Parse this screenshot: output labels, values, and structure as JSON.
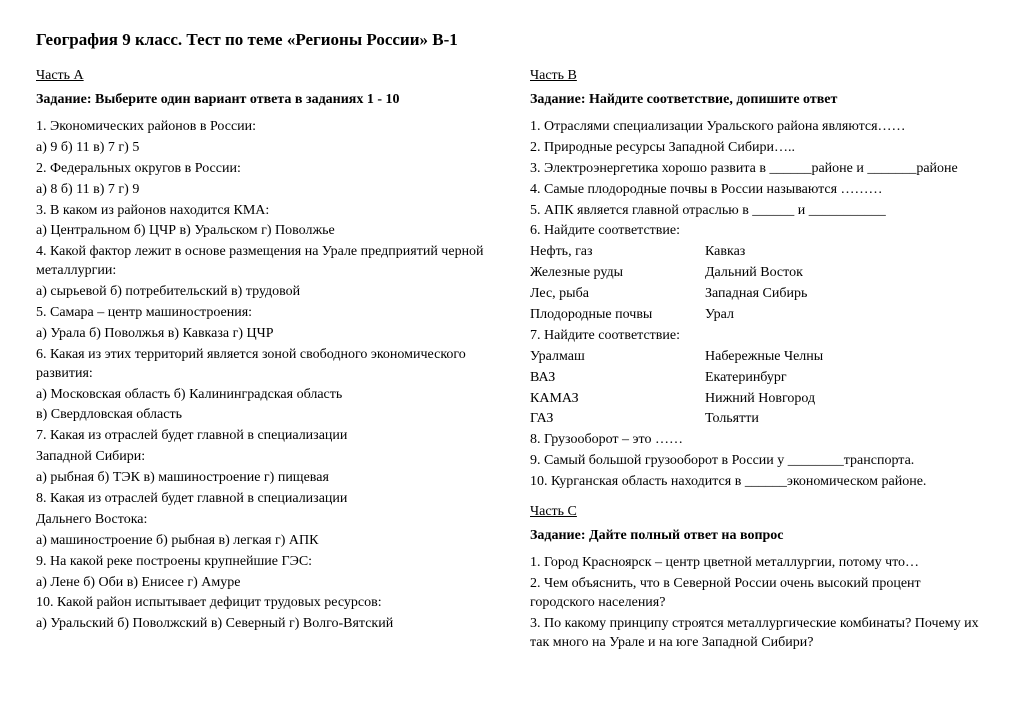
{
  "title": "География 9 класс. Тест по теме «Регионы России» В-1",
  "left": {
    "partLabel": "Часть А",
    "task": "Задание: Выберите один вариант ответа в заданиях  1 - 10",
    "lines": [
      "1. Экономических районов в России:",
      "а) 9  б) 11  в) 7  г) 5",
      "2. Федеральных округов в России:",
      "а) 8  б) 11  в) 7  г) 9",
      "3. В каком из районов находится КМА:",
      "а) Центральном б) ЦЧР  в) Уральском г) Поволжье",
      "4. Какой фактор лежит в основе размещения на Урале предприятий черной металлургии:",
      "а) сырьевой  б) потребительский  в) трудовой",
      "5. Самара – центр машиностроения:",
      "а) Урала  б) Поволжья  в) Кавказа  г) ЦЧР",
      "6. Какая из этих территорий является зоной свободного экономического развития:",
      "а) Московская область  б) Калининградская область",
      "в) Свердловская область",
      "7. Какая из отраслей будет главной в специализации",
      "Западной Сибири:",
      "а) рыбная  б) ТЭК  в) машиностроение  г) пищевая",
      "8. Какая из отраслей будет главной в специализации",
      "Дальнего Востока:",
      "а) машиностроение  б) рыбная  в) легкая  г) АПК",
      "9. На какой реке построены крупнейшие ГЭС:",
      "а) Лене  б) Оби  в) Енисее  г) Амуре",
      "10. Какой район испытывает дефицит трудовых ресурсов:",
      "а) Уральский  б) Поволжский  в) Северный  г) Волго-Вятский"
    ]
  },
  "right": {
    "partBLabel": "Часть В",
    "taskB": "Задание: Найдите соответствие, допишите ответ",
    "linesB1": [
      "1. Отраслями специализации Уральского района являются……",
      "2. Природные ресурсы Западной Сибири…..",
      "3. Электроэнергетика хорошо развита в ______районе и _______районе",
      "4. Самые плодородные почвы в России называются ………",
      "5. АПК является главной отраслью в ______  и  ___________",
      "6. Найдите соответствие:"
    ],
    "match1": [
      {
        "l": "Нефть, газ",
        "r": "Кавказ"
      },
      {
        "l": "Железные руды",
        "r": "Дальний Восток"
      },
      {
        "l": "Лес, рыба",
        "r": "Западная Сибирь"
      },
      {
        "l": "Плодородные почвы",
        "r": "Урал"
      }
    ],
    "line7": "7. Найдите соответствие:",
    "match2": [
      {
        "l": "Уралмаш",
        "r": "Набережные Челны"
      },
      {
        "l": "ВАЗ",
        "r": "Екатеринбург"
      },
      {
        "l": "КАМАЗ",
        "r": "Нижний Новгород"
      },
      {
        "l": "ГАЗ",
        "r": "Тольятти"
      }
    ],
    "linesB2": [
      "8. Грузооборот – это ……",
      "9. Самый большой грузооборот в России у ________транспорта.",
      "10. Курганская область находится в ______экономическом районе."
    ],
    "partCLabel": "Часть С",
    "taskC": "Задание: Дайте полный ответ на вопрос",
    "linesC": [
      "1. Город Красноярск – центр цветной металлургии, потому что…",
      "2. Чем объяснить, что в Северной России очень высокий процент городского населения?",
      "3. По какому принципу строятся металлургические комбинаты? Почему их так много на Урале и на юге Западной Сибири?"
    ]
  }
}
